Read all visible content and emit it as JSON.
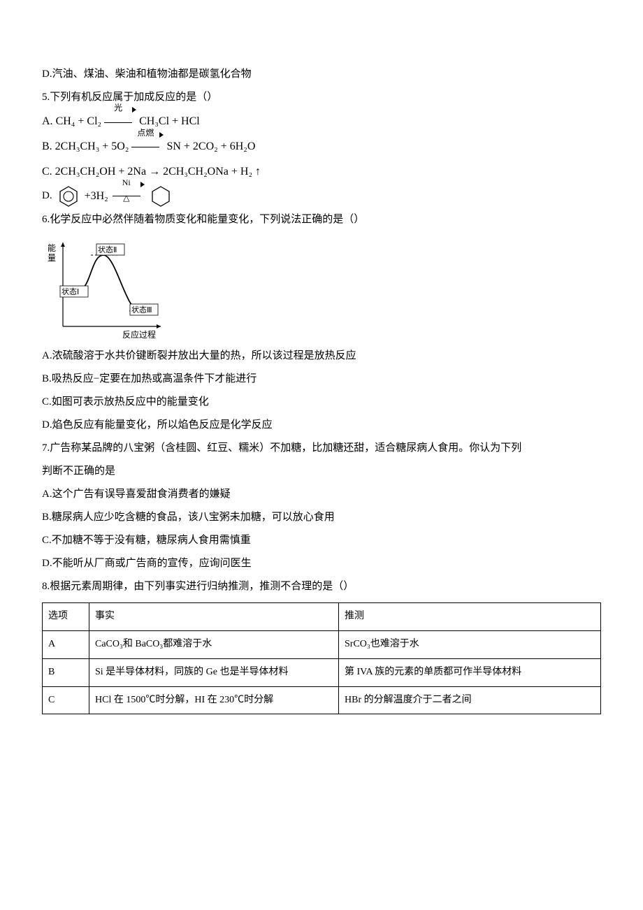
{
  "p4_optD": "D.汽油、煤油、柴油和植物油都是碳氢化合物",
  "q5": {
    "stem": "5.下列有机反应属于加成反应的是（）",
    "optA_prefix": "A.  ",
    "optA_eqn_lhs": "CH₄ + Cl₂",
    "optA_cond_top": "光",
    "optA_eqn_rhs": "CH₃Cl + HCl",
    "optB_prefix": "B. ",
    "optB_eqn_lhs": "2CH₃CH₃ + 5O₂",
    "optB_cond_top": "点燃",
    "optB_eqn_rhs": "SN + 2CO₂ + 6H₂O",
    "optC_prefix": "C. ",
    "optC_eqn": "2CH₃CH₂OH + 2Na → 2CH₃CH₂ONa + H₂ ↑",
    "optD_prefix": "D. ",
    "optD_mid": " +3H₂ ",
    "optD_cond_top": "Ni",
    "optD_cond_bot": "△"
  },
  "q6": {
    "stem": "6.化学反应中必然伴随着物质变化和能量变化，下列说法正确的是（）",
    "fig": {
      "ylabel": "能量",
      "xlabel": "反应过程",
      "state1": "状态Ⅰ",
      "state2": "状态Ⅱ",
      "state3": "状态Ⅲ",
      "line_color": "#000000",
      "bg_color": "#ffffff",
      "width": 180,
      "height": 150,
      "line_width": 1.2
    },
    "optA": "A.浓硫酸溶于水共价键断裂并放出大量的热，所以该过程是放热反应",
    "optB": "B.吸热反应−定要在加热或高温条件下才能进行",
    "optC": "C.如图可表示放热反应中的能量变化",
    "optD": "D.焰色反应有能量变化，所以焰色反应是化学反应"
  },
  "q7": {
    "stem1": "7.广告称某品牌的八宝粥（含桂圆、红豆、糯米）不加糖，比加糖还甜，适合糖尿病人食用。你认为下列",
    "stem2": "判断不正确的是",
    "optA": "A.这个广告有误导喜爱甜食消费者的嫌疑",
    "optB": "B.糖尿病人应少吃含糖的食品，该八宝粥未加糖，可以放心食用",
    "optC": "C.不加糖不等于没有糖，糖尿病人食用需慎重",
    "optD": "D.不能听从厂商或广告商的宣传，应询问医生"
  },
  "q8": {
    "stem": "8.根据元素周期律，由下列事实进行归纳推测，推测不合理的是（）",
    "headers": [
      "选项",
      "事实",
      "推测"
    ],
    "rows": [
      [
        "A",
        "CaCO₃和 BaCO₃都难溶于水",
        "SrCO₃也难溶于水"
      ],
      [
        "B",
        "Si 是半导体材料，同族的 Ge 也是半导体材料",
        "第 IVA 族的元素的单质都可作半导体材料"
      ],
      [
        "C",
        "HCl 在 1500℃时分解，HI 在 230℃时分解",
        "HBr 的分解温度介于二者之间"
      ]
    ]
  }
}
